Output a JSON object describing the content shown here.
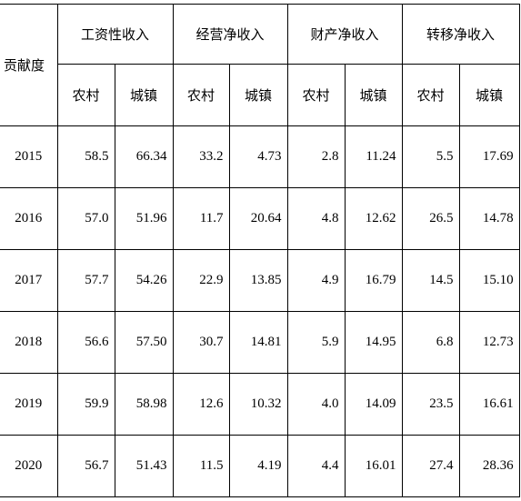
{
  "table": {
    "corner": "贡献度",
    "groups": [
      "工资性收入",
      "经营净收入",
      "财产净收入",
      "转移净收入"
    ],
    "subheaders": [
      "农村",
      "城镇",
      "农村",
      "城镇",
      "农村",
      "城镇",
      "农村",
      "城镇"
    ],
    "rows": [
      {
        "year": "2015",
        "values": [
          "58.5",
          "66.34",
          "33.2",
          "4.73",
          "2.8",
          "11.24",
          "5.5",
          "17.69"
        ]
      },
      {
        "year": "2016",
        "values": [
          "57.0",
          "51.96",
          "11.7",
          "20.64",
          "4.8",
          "12.62",
          "26.5",
          "14.78"
        ]
      },
      {
        "year": "2017",
        "values": [
          "57.7",
          "54.26",
          "22.9",
          "13.85",
          "4.9",
          "16.79",
          "14.5",
          "15.10"
        ]
      },
      {
        "year": "2018",
        "values": [
          "56.6",
          "57.50",
          "30.7",
          "14.81",
          "5.9",
          "14.95",
          "6.8",
          "12.73"
        ]
      },
      {
        "year": "2019",
        "values": [
          "59.9",
          "58.98",
          "12.6",
          "10.32",
          "4.0",
          "14.09",
          "23.5",
          "16.61"
        ]
      },
      {
        "year": "2020",
        "values": [
          "56.7",
          "51.43",
          "11.5",
          "4.19",
          "4.4",
          "16.01",
          "27.4",
          "28.36"
        ]
      }
    ]
  }
}
